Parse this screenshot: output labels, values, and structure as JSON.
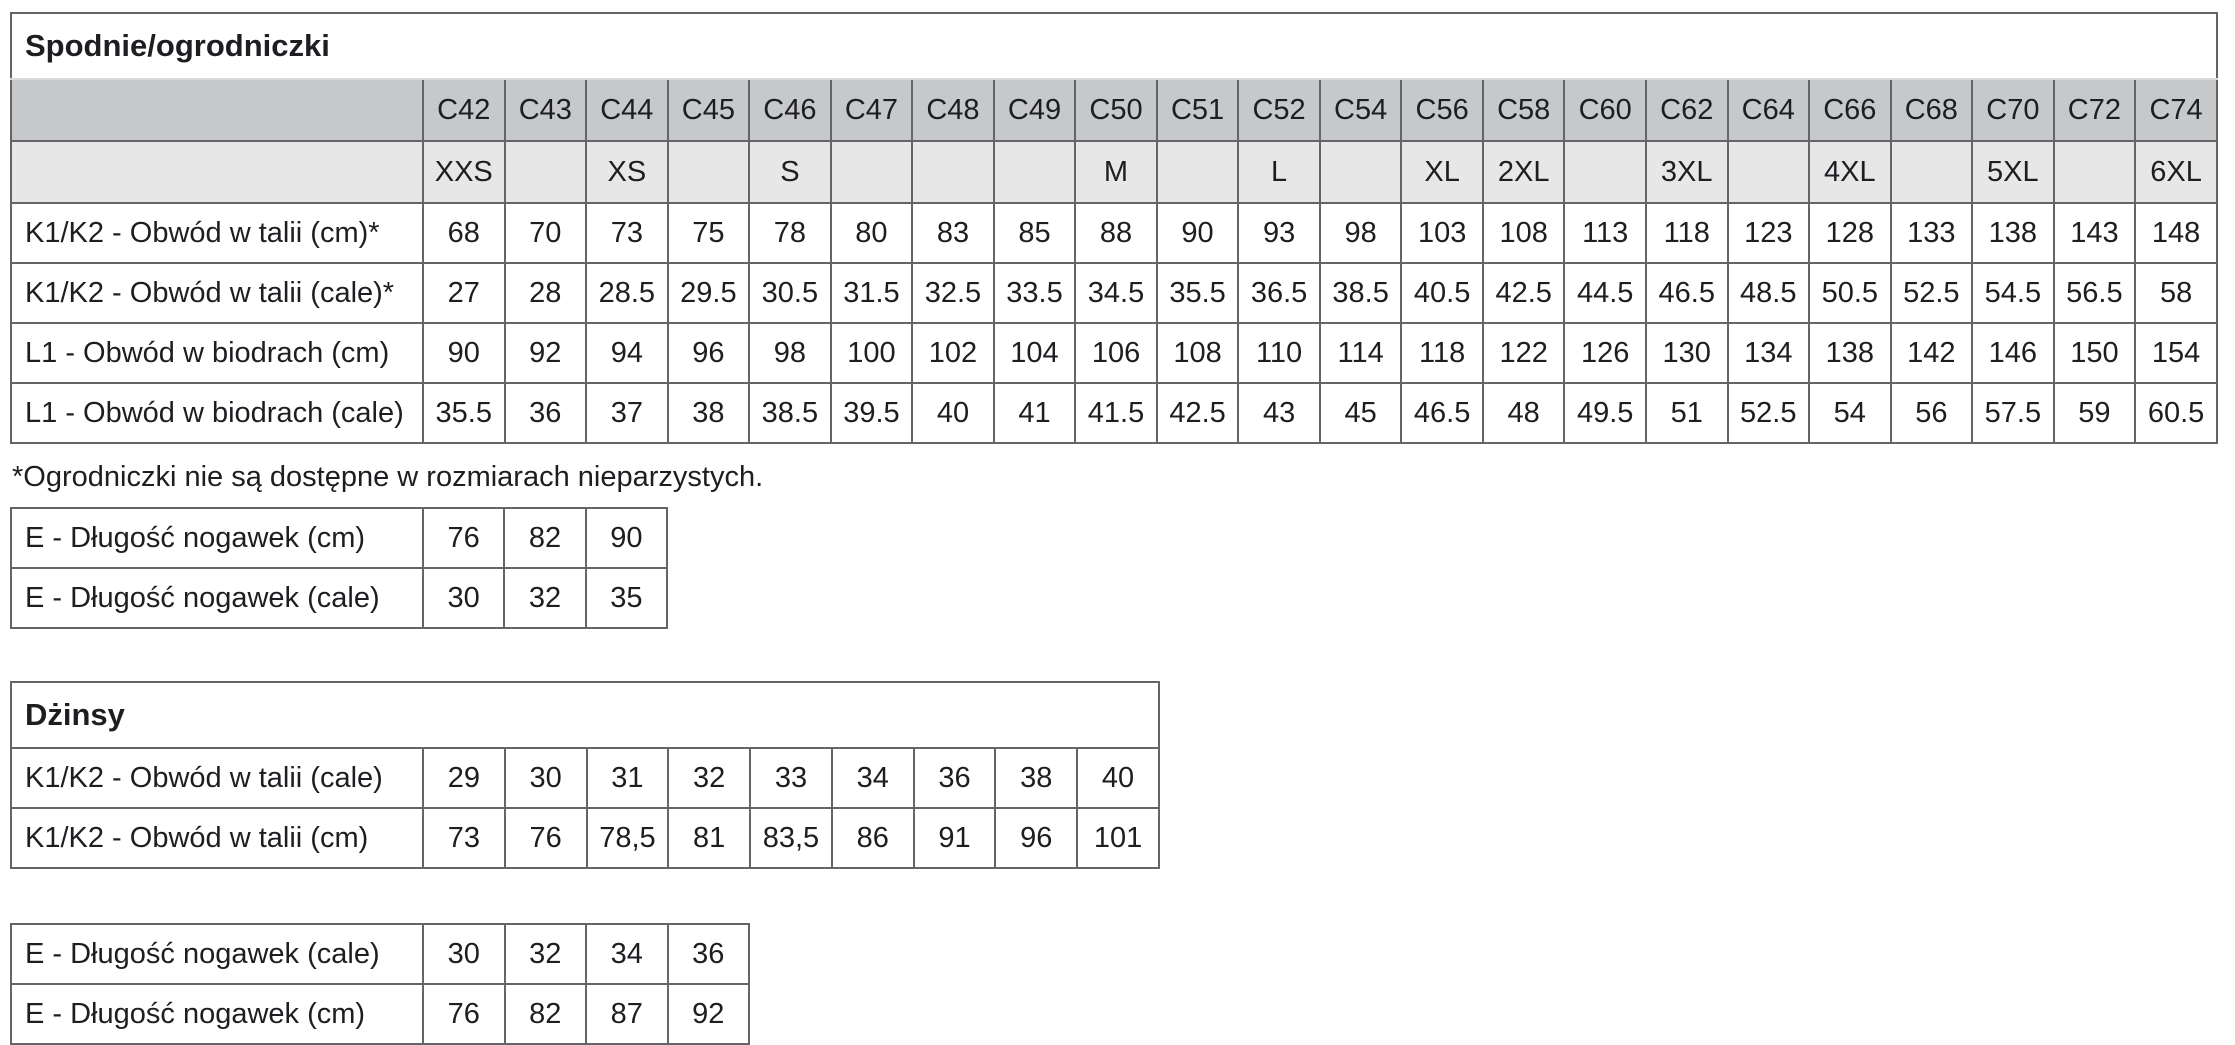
{
  "colors": {
    "header_row_bg": "#c7c8ca",
    "size_row_bg": "#e7e7e8",
    "border": "#646568",
    "title_separator": "#d9dadb",
    "text": "#1d1e21",
    "page_bg": "#ffffff"
  },
  "table1": {
    "title": "Spodnie/ogrodniczki",
    "col_headers": [
      "C42",
      "C43",
      "C44",
      "C45",
      "C46",
      "C47",
      "C48",
      "C49",
      "C50",
      "C51",
      "C52",
      "C54",
      "C56",
      "C58",
      "C60",
      "C62",
      "C64",
      "C66",
      "C68",
      "C70",
      "C72",
      "C74"
    ],
    "size_row": [
      "XXS",
      "",
      "XS",
      "",
      "S",
      "",
      "",
      "",
      "M",
      "",
      "L",
      "",
      "XL",
      "2XL",
      "",
      "3XL",
      "",
      "4XL",
      "",
      "5XL",
      "",
      "6XL"
    ],
    "rows": [
      {
        "label": "K1/K2 - Obwód w talii (cm)*",
        "values": [
          "68",
          "70",
          "73",
          "75",
          "78",
          "80",
          "83",
          "85",
          "88",
          "90",
          "93",
          "98",
          "103",
          "108",
          "113",
          "118",
          "123",
          "128",
          "133",
          "138",
          "143",
          "148"
        ]
      },
      {
        "label": "K1/K2 - Obwód w talii (cale)*",
        "values": [
          "27",
          "28",
          "28.5",
          "29.5",
          "30.5",
          "31.5",
          "32.5",
          "33.5",
          "34.5",
          "35.5",
          "36.5",
          "38.5",
          "40.5",
          "42.5",
          "44.5",
          "46.5",
          "48.5",
          "50.5",
          "52.5",
          "54.5",
          "56.5",
          "58"
        ]
      },
      {
        "label": "L1 - Obwód w biodrach (cm)",
        "values": [
          "90",
          "92",
          "94",
          "96",
          "98",
          "100",
          "102",
          "104",
          "106",
          "108",
          "110",
          "114",
          "118",
          "122",
          "126",
          "130",
          "134",
          "138",
          "142",
          "146",
          "150",
          "154"
        ]
      },
      {
        "label": "L1 - Obwód w biodrach (cale)",
        "values": [
          "35.5",
          "36",
          "37",
          "38",
          "38.5",
          "39.5",
          "40",
          "41",
          "41.5",
          "42.5",
          "43",
          "45",
          "46.5",
          "48",
          "49.5",
          "51",
          "52.5",
          "54",
          "56",
          "57.5",
          "59",
          "60.5"
        ]
      }
    ]
  },
  "footnote": "*Ogrodniczki nie są dostępne w rozmiarach nieparzystych.",
  "table2": {
    "rows": [
      {
        "label": "E - Długość nogawek (cm)",
        "values": [
          "76",
          "82",
          "90"
        ]
      },
      {
        "label": "E - Długość nogawek (cale)",
        "values": [
          "30",
          "32",
          "35"
        ]
      }
    ]
  },
  "table3": {
    "title": "Dżinsy",
    "rows": [
      {
        "label": "K1/K2 - Obwód w talii (cale)",
        "values": [
          "29",
          "30",
          "31",
          "32",
          "33",
          "34",
          "36",
          "38",
          "40"
        ]
      },
      {
        "label": "K1/K2 - Obwód w talii (cm)",
        "values": [
          "73",
          "76",
          "78,5",
          "81",
          "83,5",
          "86",
          "91",
          "96",
          "101"
        ]
      }
    ]
  },
  "table4": {
    "rows": [
      {
        "label": "E - Długość nogawek (cale)",
        "values": [
          "30",
          "32",
          "34",
          "36"
        ]
      },
      {
        "label": "E - Długość nogawek (cm)",
        "values": [
          "76",
          "82",
          "87",
          "92"
        ]
      }
    ]
  }
}
